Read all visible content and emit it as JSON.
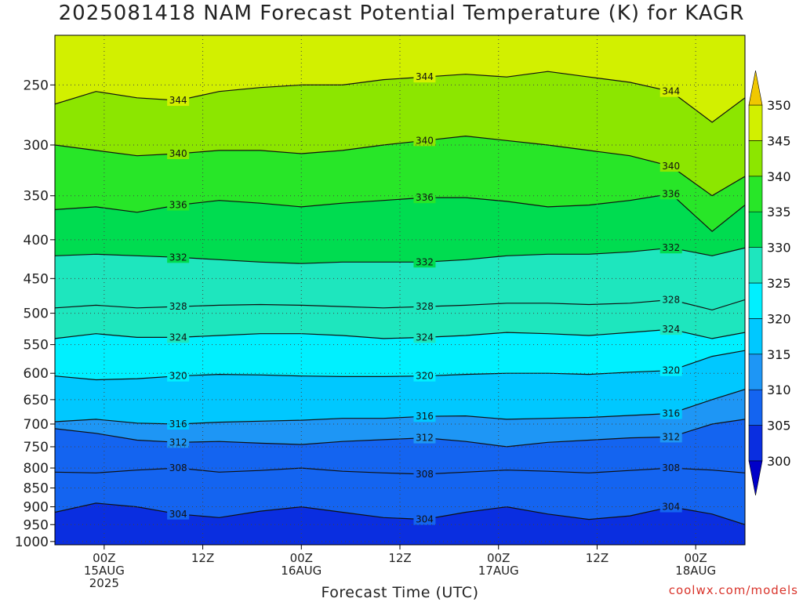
{
  "title": "2025081418 NAM Forecast Potential Temperature (K) for KAGR",
  "credit": "coolwx.com/models",
  "chart_data": {
    "type": "heatmap",
    "title": "2025081418 NAM Forecast Potential Temperature (K) for KAGR",
    "xlabel": "Forecast Time (UTC)",
    "ylabel": "",
    "y_scale": "log-pressure",
    "y_axis_reversed": true,
    "y_ticks": [
      250,
      300,
      350,
      400,
      450,
      500,
      550,
      600,
      650,
      700,
      750,
      800,
      850,
      900,
      950,
      1000
    ],
    "x_range_hours": [
      0,
      84
    ],
    "x_ticks": [
      {
        "hour": 6,
        "lines": [
          "00Z",
          "15AUG",
          "2025"
        ]
      },
      {
        "hour": 18,
        "lines": [
          "12Z"
        ]
      },
      {
        "hour": 30,
        "lines": [
          "00Z",
          "16AUG"
        ]
      },
      {
        "hour": 42,
        "lines": [
          "12Z"
        ]
      },
      {
        "hour": 54,
        "lines": [
          "00Z",
          "17AUG"
        ]
      },
      {
        "hour": 66,
        "lines": [
          "12Z"
        ]
      },
      {
        "hour": 78,
        "lines": [
          "00Z",
          "18AUG"
        ]
      }
    ],
    "grid": true,
    "colorbar": {
      "levels": [
        300,
        305,
        310,
        315,
        320,
        325,
        330,
        335,
        340,
        345,
        350
      ],
      "colors": [
        "#0000c8",
        "#0a2ee0",
        "#1464f0",
        "#1e96f5",
        "#00c8ff",
        "#00f0ff",
        "#1ee6be",
        "#00dc50",
        "#28e628",
        "#8ce600",
        "#d2f000",
        "#ffff00",
        "#f0c800"
      ],
      "extend": "both",
      "placement": "right"
    },
    "contour_interval": 2,
    "series": [
      {
        "level": 304,
        "label": "304",
        "pressure": [
          915,
          890,
          900,
          920,
          930,
          912,
          900,
          915,
          930,
          935,
          915,
          900,
          920,
          935,
          925,
          900,
          920,
          950
        ]
      },
      {
        "level": 308,
        "label": "308",
        "pressure": [
          810,
          812,
          805,
          800,
          810,
          806,
          800,
          808,
          812,
          815,
          810,
          805,
          808,
          812,
          806,
          800,
          805,
          812
        ]
      },
      {
        "level": 312,
        "label": "312",
        "pressure": [
          710,
          720,
          735,
          740,
          738,
          742,
          745,
          738,
          734,
          730,
          738,
          750,
          740,
          735,
          730,
          728,
          700,
          690
        ]
      },
      {
        "level": 316,
        "label": "316",
        "pressure": [
          695,
          690,
          698,
          700,
          696,
          694,
          692,
          688,
          688,
          684,
          683,
          690,
          688,
          686,
          682,
          678,
          650,
          630
        ]
      },
      {
        "level": 320,
        "label": "320",
        "pressure": [
          605,
          612,
          610,
          605,
          602,
          603,
          605,
          606,
          606,
          605,
          602,
          600,
          600,
          602,
          598,
          595,
          570,
          560
        ]
      },
      {
        "level": 324,
        "label": "324",
        "pressure": [
          540,
          532,
          538,
          538,
          535,
          532,
          532,
          535,
          540,
          538,
          535,
          530,
          532,
          535,
          530,
          525,
          540,
          530
        ]
      },
      {
        "level": 328,
        "label": "328",
        "pressure": [
          492,
          488,
          492,
          490,
          488,
          487,
          488,
          490,
          492,
          490,
          488,
          485,
          485,
          487,
          485,
          480,
          495,
          480
        ]
      },
      {
        "level": 332,
        "label": "332",
        "pressure": [
          420,
          418,
          420,
          422,
          425,
          428,
          430,
          428,
          428,
          428,
          425,
          420,
          418,
          418,
          415,
          410,
          420,
          410
        ]
      },
      {
        "level": 336,
        "label": "336",
        "pressure": [
          365,
          362,
          368,
          360,
          355,
          358,
          362,
          358,
          355,
          352,
          352,
          356,
          362,
          360,
          355,
          348,
          390,
          360
        ]
      },
      {
        "level": 340,
        "label": "340",
        "pressure": [
          300,
          305,
          310,
          308,
          305,
          305,
          308,
          305,
          300,
          296,
          292,
          296,
          300,
          305,
          310,
          320,
          350,
          330
        ]
      },
      {
        "level": 344,
        "label": "344",
        "pressure": [
          265,
          255,
          260,
          262,
          255,
          252,
          250,
          250,
          246,
          244,
          242,
          244,
          240,
          244,
          248,
          255,
          280,
          260
        ]
      }
    ],
    "series_x_hours": [
      0,
      5,
      10,
      15,
      20,
      25,
      30,
      35,
      40,
      45,
      50,
      55,
      60,
      65,
      70,
      75,
      80,
      84
    ]
  }
}
